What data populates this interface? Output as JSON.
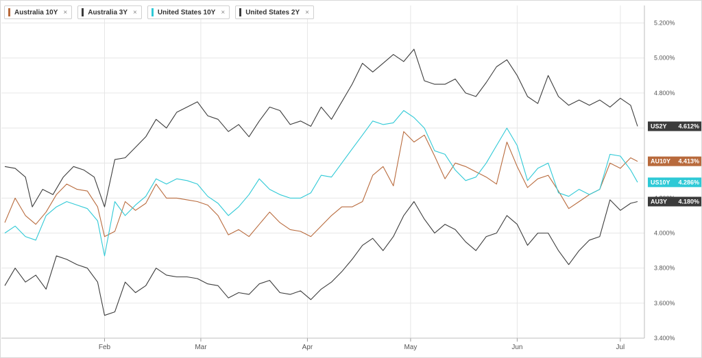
{
  "legend": [
    {
      "label": "Australia 10Y",
      "color": "#b86a3c"
    },
    {
      "label": "Australia 3Y",
      "color": "#3b3b3b"
    },
    {
      "label": "United States 10Y",
      "color": "#2ec9d6"
    },
    {
      "label": "United States 2Y",
      "color": "#3b3b3b"
    }
  ],
  "legend_remove_glyph": "×",
  "chart_data": {
    "type": "line",
    "title": "",
    "xlabel": "",
    "ylabel": "",
    "ylim": [
      3.4,
      5.3
    ],
    "y_ticks": [
      "3.400%",
      "3.600%",
      "3.800%",
      "4.000%",
      "4.200%",
      "4.400%",
      "4.600%",
      "4.800%",
      "5.000%",
      "5.200%"
    ],
    "y_tick_values": [
      3.4,
      3.6,
      3.8,
      4.0,
      4.2,
      4.4,
      4.6,
      4.8,
      5.0,
      5.2
    ],
    "x_ticks": [
      {
        "label": "Feb",
        "date": "2023-02-01"
      },
      {
        "label": "Mar",
        "date": "2023-03-01"
      },
      {
        "label": "Apr",
        "date": "2023-04-01"
      },
      {
        "label": "May",
        "date": "2023-05-01"
      },
      {
        "label": "Jun",
        "date": "2023-06-01"
      },
      {
        "label": "Jul",
        "date": "2023-07-01"
      }
    ],
    "x_range": [
      "2023-01-02",
      "2023-07-08"
    ],
    "grid": true,
    "legend_position": "top-left",
    "series": [
      {
        "name": "United States 2Y",
        "tag": "US2Y",
        "last_label": "4.612%",
        "color": "#3b3b3b",
        "points": [
          [
            "2023-01-03",
            4.38
          ],
          [
            "2023-01-06",
            4.37
          ],
          [
            "2023-01-09",
            4.32
          ],
          [
            "2023-01-11",
            4.15
          ],
          [
            "2023-01-14",
            4.25
          ],
          [
            "2023-01-17",
            4.22
          ],
          [
            "2023-01-20",
            4.32
          ],
          [
            "2023-01-23",
            4.38
          ],
          [
            "2023-01-26",
            4.36
          ],
          [
            "2023-01-29",
            4.32
          ],
          [
            "2023-02-01",
            4.15
          ],
          [
            "2023-02-04",
            4.42
          ],
          [
            "2023-02-07",
            4.43
          ],
          [
            "2023-02-10",
            4.49
          ],
          [
            "2023-02-13",
            4.55
          ],
          [
            "2023-02-16",
            4.65
          ],
          [
            "2023-02-19",
            4.6
          ],
          [
            "2023-02-22",
            4.69
          ],
          [
            "2023-02-25",
            4.72
          ],
          [
            "2023-02-28",
            4.75
          ],
          [
            "2023-03-03",
            4.67
          ],
          [
            "2023-03-06",
            4.65
          ],
          [
            "2023-03-09",
            4.58
          ],
          [
            "2023-03-12",
            4.62
          ],
          [
            "2023-03-15",
            4.55
          ],
          [
            "2023-03-18",
            4.64
          ],
          [
            "2023-03-21",
            4.72
          ],
          [
            "2023-03-24",
            4.7
          ],
          [
            "2023-03-27",
            4.62
          ],
          [
            "2023-03-30",
            4.64
          ],
          [
            "2023-04-02",
            4.61
          ],
          [
            "2023-04-05",
            4.72
          ],
          [
            "2023-04-08",
            4.65
          ],
          [
            "2023-04-11",
            4.75
          ],
          [
            "2023-04-14",
            4.85
          ],
          [
            "2023-04-17",
            4.97
          ],
          [
            "2023-04-20",
            4.92
          ],
          [
            "2023-04-23",
            4.97
          ],
          [
            "2023-04-26",
            5.02
          ],
          [
            "2023-04-29",
            4.98
          ],
          [
            "2023-05-02",
            5.05
          ],
          [
            "2023-05-05",
            4.87
          ],
          [
            "2023-05-08",
            4.85
          ],
          [
            "2023-05-11",
            4.85
          ],
          [
            "2023-05-14",
            4.88
          ],
          [
            "2023-05-17",
            4.8
          ],
          [
            "2023-05-20",
            4.78
          ],
          [
            "2023-05-23",
            4.86
          ],
          [
            "2023-05-26",
            4.95
          ],
          [
            "2023-05-29",
            4.99
          ],
          [
            "2023-06-01",
            4.9
          ],
          [
            "2023-06-04",
            4.78
          ],
          [
            "2023-06-07",
            4.74
          ],
          [
            "2023-06-10",
            4.9
          ],
          [
            "2023-06-13",
            4.78
          ],
          [
            "2023-06-16",
            4.73
          ],
          [
            "2023-06-19",
            4.76
          ],
          [
            "2023-06-22",
            4.73
          ],
          [
            "2023-06-25",
            4.76
          ],
          [
            "2023-06-28",
            4.72
          ],
          [
            "2023-07-01",
            4.77
          ],
          [
            "2023-07-04",
            4.73
          ],
          [
            "2023-07-06",
            4.61
          ]
        ]
      },
      {
        "name": "Australia 10Y",
        "tag": "AU10Y",
        "last_label": "4.413%",
        "color": "#b86a3c",
        "points": [
          [
            "2023-01-03",
            4.06
          ],
          [
            "2023-01-06",
            4.2
          ],
          [
            "2023-01-09",
            4.1
          ],
          [
            "2023-01-12",
            4.05
          ],
          [
            "2023-01-15",
            4.12
          ],
          [
            "2023-01-18",
            4.22
          ],
          [
            "2023-01-21",
            4.28
          ],
          [
            "2023-01-24",
            4.25
          ],
          [
            "2023-01-27",
            4.24
          ],
          [
            "2023-01-30",
            4.15
          ],
          [
            "2023-02-01",
            3.98
          ],
          [
            "2023-02-04",
            4.01
          ],
          [
            "2023-02-07",
            4.18
          ],
          [
            "2023-02-10",
            4.13
          ],
          [
            "2023-02-13",
            4.17
          ],
          [
            "2023-02-16",
            4.28
          ],
          [
            "2023-02-19",
            4.2
          ],
          [
            "2023-02-22",
            4.2
          ],
          [
            "2023-02-25",
            4.19
          ],
          [
            "2023-02-28",
            4.18
          ],
          [
            "2023-03-03",
            4.16
          ],
          [
            "2023-03-06",
            4.1
          ],
          [
            "2023-03-09",
            3.99
          ],
          [
            "2023-03-12",
            4.02
          ],
          [
            "2023-03-15",
            3.98
          ],
          [
            "2023-03-18",
            4.05
          ],
          [
            "2023-03-21",
            4.12
          ],
          [
            "2023-03-24",
            4.06
          ],
          [
            "2023-03-27",
            4.02
          ],
          [
            "2023-03-30",
            4.01
          ],
          [
            "2023-04-02",
            3.98
          ],
          [
            "2023-04-05",
            4.04
          ],
          [
            "2023-04-08",
            4.1
          ],
          [
            "2023-04-11",
            4.15
          ],
          [
            "2023-04-14",
            4.15
          ],
          [
            "2023-04-17",
            4.18
          ],
          [
            "2023-04-20",
            4.33
          ],
          [
            "2023-04-23",
            4.38
          ],
          [
            "2023-04-26",
            4.27
          ],
          [
            "2023-04-29",
            4.58
          ],
          [
            "2023-05-02",
            4.52
          ],
          [
            "2023-05-05",
            4.56
          ],
          [
            "2023-05-08",
            4.44
          ],
          [
            "2023-05-11",
            4.31
          ],
          [
            "2023-05-14",
            4.4
          ],
          [
            "2023-05-17",
            4.38
          ],
          [
            "2023-05-20",
            4.35
          ],
          [
            "2023-05-23",
            4.32
          ],
          [
            "2023-05-26",
            4.28
          ],
          [
            "2023-05-29",
            4.52
          ],
          [
            "2023-06-01",
            4.38
          ],
          [
            "2023-06-04",
            4.26
          ],
          [
            "2023-06-07",
            4.31
          ],
          [
            "2023-06-10",
            4.33
          ],
          [
            "2023-06-13",
            4.24
          ],
          [
            "2023-06-16",
            4.14
          ],
          [
            "2023-06-19",
            4.18
          ],
          [
            "2023-06-22",
            4.22
          ],
          [
            "2023-06-25",
            4.25
          ],
          [
            "2023-06-28",
            4.4
          ],
          [
            "2023-07-01",
            4.37
          ],
          [
            "2023-07-04",
            4.43
          ],
          [
            "2023-07-06",
            4.41
          ]
        ]
      },
      {
        "name": "United States 10Y",
        "tag": "US10Y",
        "last_label": "4.286%",
        "color": "#2ec9d6",
        "points": [
          [
            "2023-01-03",
            4.0
          ],
          [
            "2023-01-06",
            4.04
          ],
          [
            "2023-01-09",
            3.98
          ],
          [
            "2023-01-12",
            3.96
          ],
          [
            "2023-01-15",
            4.1
          ],
          [
            "2023-01-18",
            4.15
          ],
          [
            "2023-01-21",
            4.18
          ],
          [
            "2023-01-24",
            4.16
          ],
          [
            "2023-01-27",
            4.14
          ],
          [
            "2023-01-30",
            4.07
          ],
          [
            "2023-02-01",
            3.87
          ],
          [
            "2023-02-04",
            4.18
          ],
          [
            "2023-02-07",
            4.1
          ],
          [
            "2023-02-10",
            4.16
          ],
          [
            "2023-02-13",
            4.21
          ],
          [
            "2023-02-16",
            4.31
          ],
          [
            "2023-02-19",
            4.28
          ],
          [
            "2023-02-22",
            4.31
          ],
          [
            "2023-02-25",
            4.3
          ],
          [
            "2023-02-28",
            4.28
          ],
          [
            "2023-03-03",
            4.21
          ],
          [
            "2023-03-06",
            4.17
          ],
          [
            "2023-03-09",
            4.1
          ],
          [
            "2023-03-12",
            4.15
          ],
          [
            "2023-03-15",
            4.22
          ],
          [
            "2023-03-18",
            4.31
          ],
          [
            "2023-03-21",
            4.25
          ],
          [
            "2023-03-24",
            4.22
          ],
          [
            "2023-03-27",
            4.2
          ],
          [
            "2023-03-30",
            4.2
          ],
          [
            "2023-04-02",
            4.23
          ],
          [
            "2023-04-05",
            4.33
          ],
          [
            "2023-04-08",
            4.32
          ],
          [
            "2023-04-11",
            4.4
          ],
          [
            "2023-04-14",
            4.48
          ],
          [
            "2023-04-17",
            4.56
          ],
          [
            "2023-04-20",
            4.64
          ],
          [
            "2023-04-23",
            4.62
          ],
          [
            "2023-04-26",
            4.63
          ],
          [
            "2023-04-29",
            4.7
          ],
          [
            "2023-05-02",
            4.66
          ],
          [
            "2023-05-05",
            4.6
          ],
          [
            "2023-05-08",
            4.47
          ],
          [
            "2023-05-11",
            4.45
          ],
          [
            "2023-05-14",
            4.36
          ],
          [
            "2023-05-17",
            4.3
          ],
          [
            "2023-05-20",
            4.32
          ],
          [
            "2023-05-23",
            4.4
          ],
          [
            "2023-05-26",
            4.5
          ],
          [
            "2023-05-29",
            4.6
          ],
          [
            "2023-06-01",
            4.5
          ],
          [
            "2023-06-04",
            4.3
          ],
          [
            "2023-06-07",
            4.37
          ],
          [
            "2023-06-10",
            4.4
          ],
          [
            "2023-06-13",
            4.23
          ],
          [
            "2023-06-16",
            4.21
          ],
          [
            "2023-06-19",
            4.25
          ],
          [
            "2023-06-22",
            4.22
          ],
          [
            "2023-06-25",
            4.25
          ],
          [
            "2023-06-28",
            4.45
          ],
          [
            "2023-07-01",
            4.44
          ],
          [
            "2023-07-04",
            4.36
          ],
          [
            "2023-07-06",
            4.29
          ]
        ]
      },
      {
        "name": "Australia 3Y",
        "tag": "AU3Y",
        "last_label": "4.180%",
        "color": "#3b3b3b",
        "points": [
          [
            "2023-01-03",
            3.7
          ],
          [
            "2023-01-06",
            3.8
          ],
          [
            "2023-01-09",
            3.72
          ],
          [
            "2023-01-12",
            3.76
          ],
          [
            "2023-01-15",
            3.68
          ],
          [
            "2023-01-18",
            3.87
          ],
          [
            "2023-01-21",
            3.85
          ],
          [
            "2023-01-24",
            3.82
          ],
          [
            "2023-01-27",
            3.8
          ],
          [
            "2023-01-30",
            3.72
          ],
          [
            "2023-02-01",
            3.53
          ],
          [
            "2023-02-04",
            3.55
          ],
          [
            "2023-02-07",
            3.72
          ],
          [
            "2023-02-10",
            3.66
          ],
          [
            "2023-02-13",
            3.7
          ],
          [
            "2023-02-16",
            3.8
          ],
          [
            "2023-02-19",
            3.76
          ],
          [
            "2023-02-22",
            3.75
          ],
          [
            "2023-02-25",
            3.75
          ],
          [
            "2023-02-28",
            3.74
          ],
          [
            "2023-03-03",
            3.71
          ],
          [
            "2023-03-06",
            3.7
          ],
          [
            "2023-03-09",
            3.63
          ],
          [
            "2023-03-12",
            3.66
          ],
          [
            "2023-03-15",
            3.65
          ],
          [
            "2023-03-18",
            3.71
          ],
          [
            "2023-03-21",
            3.73
          ],
          [
            "2023-03-24",
            3.66
          ],
          [
            "2023-03-27",
            3.65
          ],
          [
            "2023-03-30",
            3.67
          ],
          [
            "2023-04-02",
            3.62
          ],
          [
            "2023-04-05",
            3.68
          ],
          [
            "2023-04-08",
            3.72
          ],
          [
            "2023-04-11",
            3.78
          ],
          [
            "2023-04-14",
            3.85
          ],
          [
            "2023-04-17",
            3.93
          ],
          [
            "2023-04-20",
            3.97
          ],
          [
            "2023-04-23",
            3.9
          ],
          [
            "2023-04-26",
            3.98
          ],
          [
            "2023-04-29",
            4.1
          ],
          [
            "2023-05-02",
            4.18
          ],
          [
            "2023-05-05",
            4.08
          ],
          [
            "2023-05-08",
            4.0
          ],
          [
            "2023-05-11",
            4.05
          ],
          [
            "2023-05-14",
            4.02
          ],
          [
            "2023-05-17",
            3.95
          ],
          [
            "2023-05-20",
            3.9
          ],
          [
            "2023-05-23",
            3.98
          ],
          [
            "2023-05-26",
            4.0
          ],
          [
            "2023-05-29",
            4.1
          ],
          [
            "2023-06-01",
            4.05
          ],
          [
            "2023-06-04",
            3.93
          ],
          [
            "2023-06-07",
            4.0
          ],
          [
            "2023-06-10",
            4.0
          ],
          [
            "2023-06-13",
            3.9
          ],
          [
            "2023-06-16",
            3.82
          ],
          [
            "2023-06-19",
            3.9
          ],
          [
            "2023-06-22",
            3.96
          ],
          [
            "2023-06-25",
            3.98
          ],
          [
            "2023-06-28",
            4.19
          ],
          [
            "2023-07-01",
            4.13
          ],
          [
            "2023-07-04",
            4.17
          ],
          [
            "2023-07-06",
            4.18
          ]
        ]
      }
    ]
  }
}
